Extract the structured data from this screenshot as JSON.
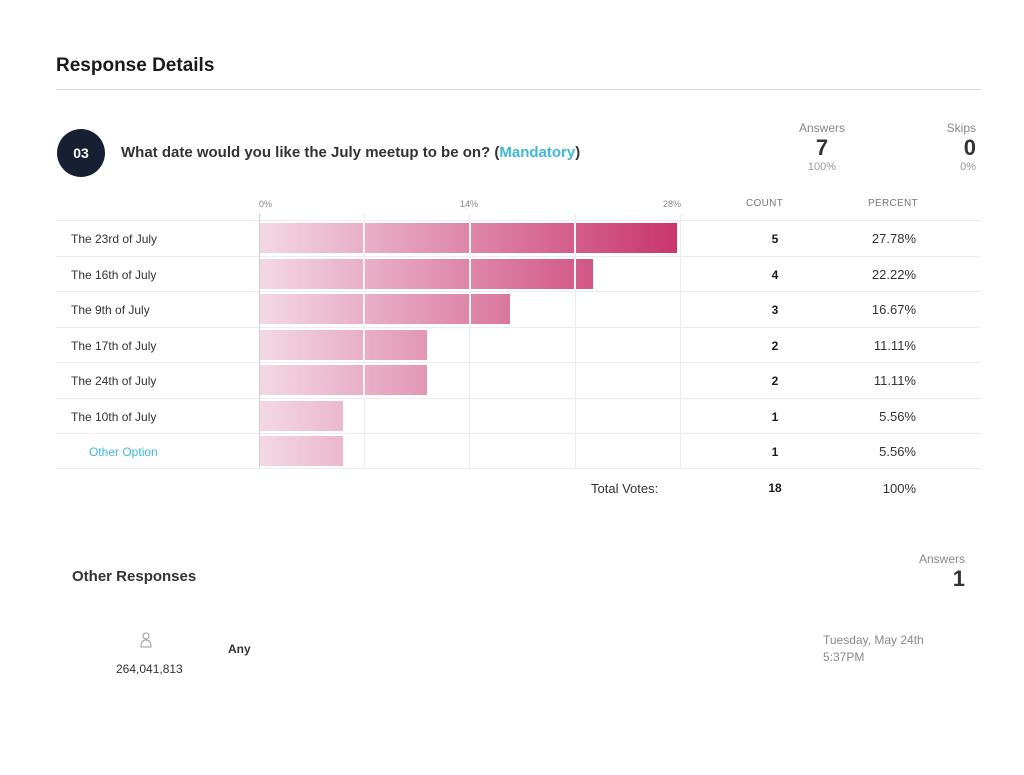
{
  "page": {
    "title": "Response Details"
  },
  "question": {
    "number": "03",
    "text": "What date would you like the July meetup to be on? (",
    "mandatory": "Mandatory",
    "close": ")"
  },
  "stats": {
    "answers_label": "Answers",
    "answers_value": "7",
    "answers_pct": "100%",
    "skips_label": "Skips",
    "skips_value": "0",
    "skips_pct": "0%"
  },
  "table": {
    "count_header": "COUNT",
    "percent_header": "PERCENT",
    "total_label": "Total Votes:",
    "total_count": "18",
    "total_pct": "100%"
  },
  "chart_data": {
    "type": "bar",
    "orientation": "horizontal",
    "axis_ticks": [
      "0%",
      "14%",
      "28%"
    ],
    "xlim": [
      0,
      28
    ],
    "categories": [
      "The 23rd of July",
      "The 16th of July",
      "The 9th of July",
      "The 17th of July",
      "The 24th of July",
      "The 10th of July",
      "Other Option"
    ],
    "counts": [
      "5",
      "4",
      "3",
      "2",
      "2",
      "1",
      "1"
    ],
    "percents": [
      "27.78%",
      "22.22%",
      "16.67%",
      "11.11%",
      "11.11%",
      "5.56%",
      "5.56%"
    ],
    "values": [
      27.78,
      22.22,
      16.67,
      11.11,
      11.11,
      5.56,
      5.56
    ],
    "colors": {
      "start": "#f3d8e4",
      "end": "#c73068"
    }
  },
  "other_responses": {
    "title": "Other Responses",
    "answers_label": "Answers",
    "answers_value": "1",
    "items": [
      {
        "respondent_id": "264,041,813",
        "text": "Any",
        "date": "Tuesday, May 24th",
        "time": "5:37PM"
      }
    ]
  }
}
